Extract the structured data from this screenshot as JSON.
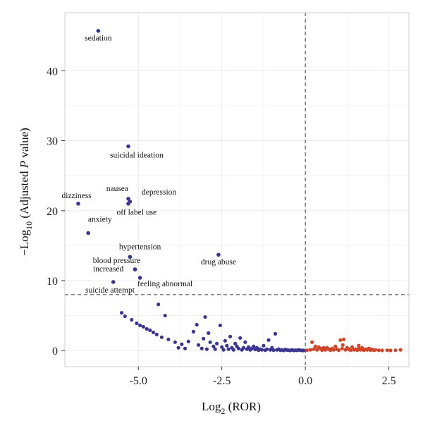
{
  "chart_data": {
    "type": "scatter",
    "title": "",
    "xlabel": {
      "main": "Log",
      "sub": "2",
      "rest": " (ROR)"
    },
    "ylabel": {
      "prefix": "−Log",
      "sub": "10",
      "rest1": " (Adjusted ",
      "italic": "P",
      "rest2": " value)"
    },
    "xlim": [
      -7.2,
      3.1
    ],
    "ylim": [
      -2.3,
      48.3
    ],
    "xticks": [
      -5.0,
      -2.5,
      0.0,
      2.5
    ],
    "xtick_labels": [
      "-5.0",
      "-2.5",
      "0.0",
      "2.5"
    ],
    "yticks": [
      0,
      10,
      20,
      30,
      40
    ],
    "ytick_labels": [
      "0",
      "10",
      "20",
      "30",
      "40"
    ],
    "grid": true,
    "reference_lines": {
      "vertical_x": 0.0,
      "horizontal_y": 8.0
    },
    "colors": {
      "negative": "#3a3590",
      "positive": "#d2452b",
      "grid": "#ebebeb",
      "refline": "#555555",
      "axis": "#333333"
    },
    "labeled_points": [
      {
        "label": "sedation",
        "x": -6.2,
        "y": 45.7,
        "lx": -6.2,
        "ly": 44.3,
        "anchor": "middle"
      },
      {
        "label": "suicidal ideation",
        "x": -5.3,
        "y": 29.2,
        "lx": -5.05,
        "ly": 27.6,
        "anchor": "middle"
      },
      {
        "label": "nausea",
        "x": -5.3,
        "y": 21.7,
        "lx": -5.3,
        "ly": 22.8,
        "anchor": "end"
      },
      {
        "label": "depression",
        "x": -5.25,
        "y": 21.3,
        "lx": -4.9,
        "ly": 22.3,
        "anchor": "start"
      },
      {
        "label": "off label use",
        "x": -5.3,
        "y": 21.0,
        "lx": -5.05,
        "ly": 19.4,
        "anchor": "middle"
      },
      {
        "label": "dizziness",
        "x": -6.8,
        "y": 21.0,
        "lx": -6.85,
        "ly": 21.8,
        "anchor": "middle"
      },
      {
        "label": "anxiety",
        "x": -6.5,
        "y": 16.8,
        "lx": -6.15,
        "ly": 18.4,
        "anchor": "middle"
      },
      {
        "label": "hypertension",
        "x": -5.25,
        "y": 13.4,
        "lx": -4.95,
        "ly": 14.5,
        "anchor": "middle"
      },
      {
        "label": "drug abuse",
        "x": -2.6,
        "y": 13.7,
        "lx": -2.6,
        "ly": 12.3,
        "anchor": "middle"
      },
      {
        "label": "blood pressure",
        "x": -5.1,
        "y": 11.6,
        "lx": -5.65,
        "ly": 12.5,
        "anchor": "middle"
      },
      {
        "label": "increased",
        "x": -5.1,
        "y": 11.6,
        "lx": -5.9,
        "ly": 11.3,
        "anchor": "middle"
      },
      {
        "label": "feeling abnormal",
        "x": -4.95,
        "y": 10.4,
        "lx": -4.2,
        "ly": 9.2,
        "anchor": "middle"
      },
      {
        "label": "suicide attempt",
        "x": -5.75,
        "y": 9.8,
        "lx": -5.85,
        "ly": 8.3,
        "anchor": "middle"
      }
    ],
    "negative_points": [
      [
        -5.5,
        5.4
      ],
      [
        -5.4,
        4.9
      ],
      [
        -5.2,
        4.4
      ],
      [
        -5.05,
        3.9
      ],
      [
        -4.95,
        3.6
      ],
      [
        -4.85,
        3.4
      ],
      [
        -4.75,
        3.1
      ],
      [
        -4.65,
        2.9
      ],
      [
        -4.55,
        2.6
      ],
      [
        -4.45,
        2.3
      ],
      [
        -4.3,
        1.9
      ],
      [
        -4.1,
        1.6
      ],
      [
        -4.2,
        5.0
      ],
      [
        -4.4,
        6.6
      ],
      [
        -3.9,
        1.2
      ],
      [
        -3.7,
        0.9
      ],
      [
        -3.5,
        1.3
      ],
      [
        -3.35,
        2.7
      ],
      [
        -3.25,
        3.7
      ],
      [
        -3.2,
        0.8
      ],
      [
        -3.05,
        1.7
      ],
      [
        -3.0,
        4.8
      ],
      [
        -2.9,
        2.5
      ],
      [
        -2.85,
        1.2
      ],
      [
        -2.75,
        0.6
      ],
      [
        -2.65,
        1.0
      ],
      [
        -2.55,
        3.6
      ],
      [
        -2.5,
        0.5
      ],
      [
        -2.4,
        1.4
      ],
      [
        -2.35,
        0.7
      ],
      [
        -2.25,
        2.0
      ],
      [
        -2.2,
        0.4
      ],
      [
        -2.1,
        1.0
      ],
      [
        -2.05,
        0.6
      ],
      [
        -1.95,
        1.8
      ],
      [
        -1.85,
        0.4
      ],
      [
        -1.8,
        1.2
      ],
      [
        -1.7,
        0.5
      ],
      [
        -1.6,
        0.3
      ],
      [
        -1.55,
        0.6
      ],
      [
        -1.45,
        0.4
      ],
      [
        -1.35,
        0.2
      ],
      [
        -1.25,
        0.7
      ],
      [
        -1.1,
        1.5
      ],
      [
        -1.0,
        0.4
      ],
      [
        -0.9,
        2.4
      ],
      [
        -0.8,
        0.2
      ],
      [
        -0.7,
        0.1
      ],
      [
        -0.6,
        0.15
      ],
      [
        -0.5,
        0.05
      ],
      [
        -0.4,
        0.1
      ],
      [
        -0.3,
        0.05
      ],
      [
        -0.2,
        0.1
      ],
      [
        -0.1,
        0.02
      ],
      [
        -3.8,
        0.4
      ],
      [
        -3.6,
        0.3
      ],
      [
        -3.1,
        0.3
      ],
      [
        -2.95,
        0.2
      ],
      [
        -2.7,
        0.2
      ],
      [
        -2.45,
        0.1
      ],
      [
        -2.3,
        0.2
      ],
      [
        -2.15,
        0.1
      ],
      [
        -2.0,
        0.3
      ],
      [
        -1.9,
        0.1
      ],
      [
        -1.75,
        0.2
      ],
      [
        -1.65,
        0.1
      ],
      [
        -1.5,
        0.15
      ],
      [
        -1.4,
        0.05
      ],
      [
        -1.3,
        0.1
      ],
      [
        -1.2,
        0.05
      ],
      [
        -1.15,
        0.2
      ],
      [
        -1.05,
        0.1
      ],
      [
        -0.95,
        0.05
      ],
      [
        -0.85,
        0.1
      ],
      [
        -0.75,
        0.05
      ],
      [
        -0.65,
        0.02
      ],
      [
        -0.55,
        0.08
      ],
      [
        -0.45,
        0.02
      ],
      [
        -0.35,
        0.02
      ],
      [
        -0.25,
        0.03
      ],
      [
        -0.15,
        0.05
      ],
      [
        -0.05,
        0.02
      ]
    ],
    "positive_points": [
      [
        0.05,
        0.05
      ],
      [
        0.15,
        0.1
      ],
      [
        0.2,
        1.2
      ],
      [
        0.25,
        0.2
      ],
      [
        0.3,
        0.6
      ],
      [
        0.35,
        0.1
      ],
      [
        0.45,
        0.3
      ],
      [
        0.5,
        0.05
      ],
      [
        0.55,
        0.4
      ],
      [
        0.6,
        0.1
      ],
      [
        0.7,
        0.2
      ],
      [
        0.75,
        0.05
      ],
      [
        0.8,
        0.3
      ],
      [
        0.85,
        0.1
      ],
      [
        0.9,
        0.6
      ],
      [
        0.95,
        0.2
      ],
      [
        1.0,
        0.05
      ],
      [
        1.05,
        1.5
      ],
      [
        1.1,
        0.3
      ],
      [
        1.15,
        1.6
      ],
      [
        1.2,
        0.1
      ],
      [
        1.25,
        0.4
      ],
      [
        1.3,
        0.2
      ],
      [
        1.35,
        0.05
      ],
      [
        1.4,
        0.5
      ],
      [
        1.45,
        0.1
      ],
      [
        1.5,
        0.2
      ],
      [
        1.55,
        0.05
      ],
      [
        1.6,
        0.3
      ],
      [
        1.65,
        0.1
      ],
      [
        1.7,
        0.4
      ],
      [
        1.75,
        0.05
      ],
      [
        1.8,
        0.2
      ],
      [
        1.85,
        0.1
      ],
      [
        1.9,
        0.3
      ],
      [
        1.95,
        0.05
      ],
      [
        2.0,
        0.15
      ],
      [
        2.05,
        0.05
      ],
      [
        2.1,
        0.1
      ],
      [
        2.2,
        0.05
      ],
      [
        2.3,
        0.02
      ],
      [
        2.45,
        0.05
      ],
      [
        2.55,
        0.02
      ],
      [
        2.7,
        0.05
      ],
      [
        2.85,
        0.1
      ],
      [
        0.65,
        0.4
      ],
      [
        1.12,
        0.8
      ],
      [
        0.4,
        0.5
      ],
      [
        1.6,
        0.7
      ],
      [
        1.95,
        0.2
      ]
    ]
  }
}
